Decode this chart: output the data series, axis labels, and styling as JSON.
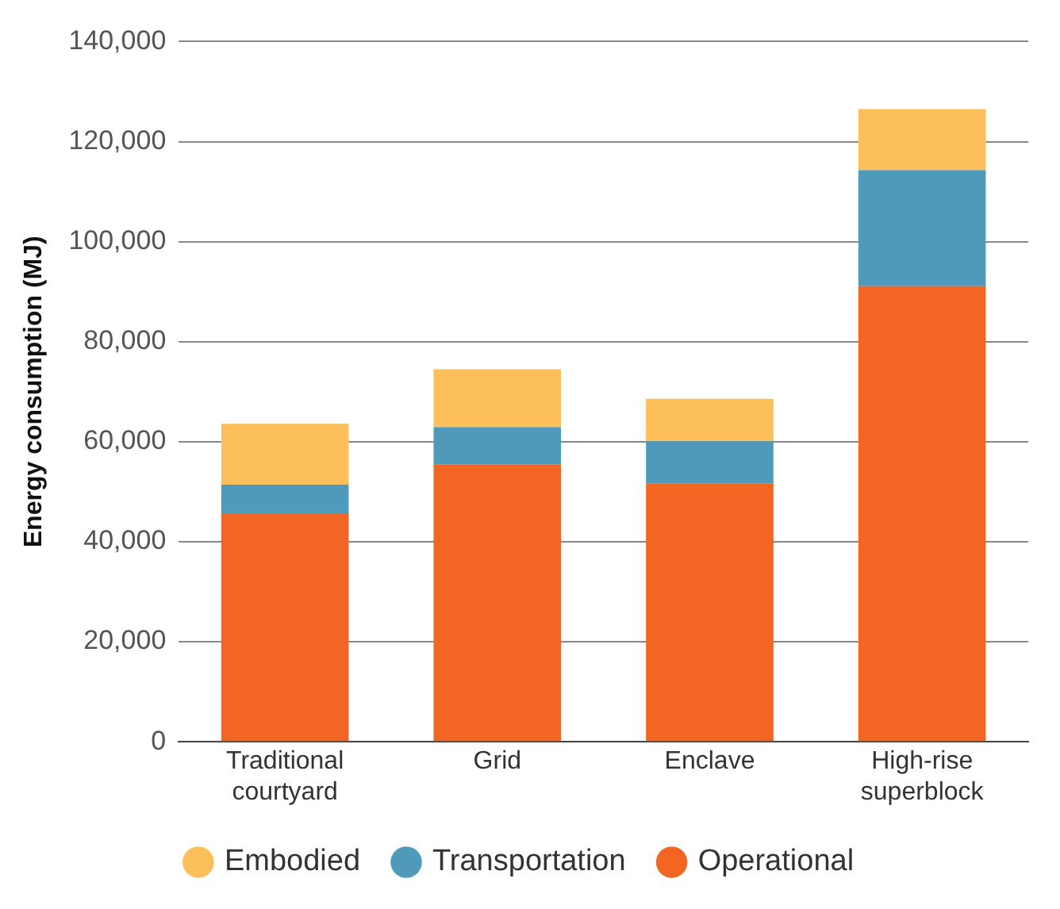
{
  "chart_data": {
    "type": "bar",
    "stacked": true,
    "ylabel": "Energy consumption (MJ)",
    "categories": [
      "Traditional courtyard",
      "Grid",
      "Enclave",
      "High-rise superblock"
    ],
    "series": [
      {
        "name": "Operational",
        "color": "#f26522",
        "values": [
          45700,
          55400,
          51700,
          91100
        ]
      },
      {
        "name": "Transportation",
        "color": "#4f9aba",
        "values": [
          5700,
          7500,
          8400,
          23200
        ]
      },
      {
        "name": "Embodied",
        "color": "#fdbf5a",
        "values": [
          12200,
          11600,
          8500,
          12200
        ]
      }
    ],
    "ylim": [
      0,
      140000
    ],
    "yticks": [
      0,
      {
        "value": 20000,
        "label": "20,000"
      },
      {
        "value": 40000,
        "label": "40,000"
      },
      {
        "value": 60000,
        "label": "60,000"
      },
      {
        "value": 80000,
        "label": "80,000"
      },
      {
        "value": 100000,
        "label": "100,000"
      },
      {
        "value": 120000,
        "label": "120,000"
      },
      {
        "value": 140000,
        "label": "140,000"
      }
    ],
    "grid": "y",
    "legend": "bottom"
  }
}
